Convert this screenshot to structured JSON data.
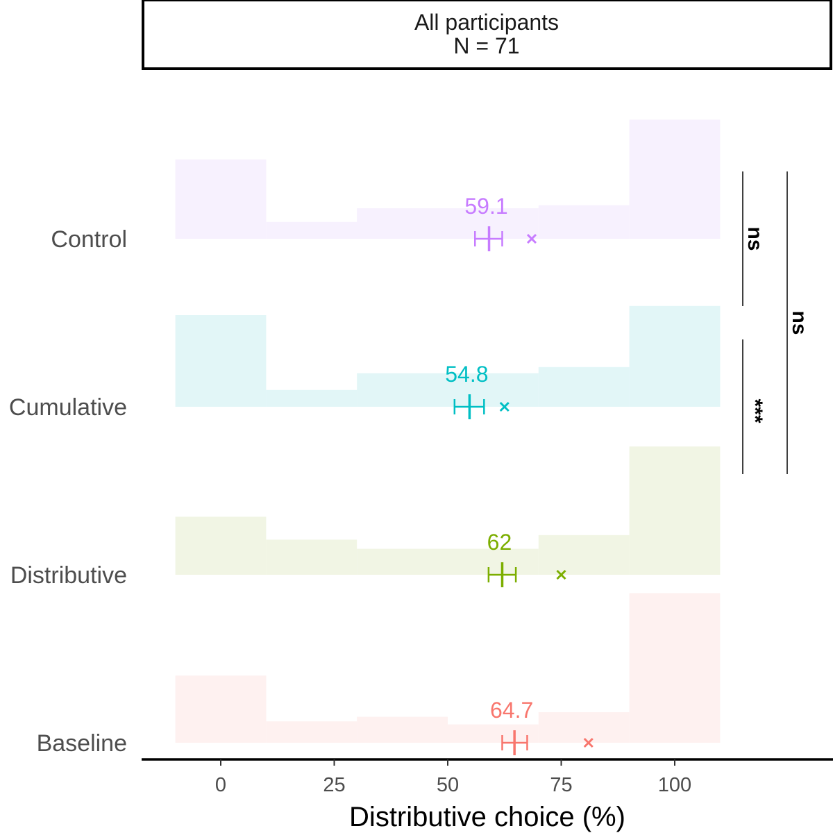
{
  "chart_data": {
    "type": "histogram",
    "facet_title": "All participants",
    "facet_subtitle": "N = 71",
    "xlabel": "Distributive choice (%)",
    "xlim": [
      -17.5,
      135
    ],
    "xticks": [
      0,
      25,
      50,
      75,
      100
    ],
    "bins": [
      [
        -10,
        10
      ],
      [
        10,
        30
      ],
      [
        30,
        50
      ],
      [
        50,
        70
      ],
      [
        70,
        90
      ],
      [
        90,
        110
      ]
    ],
    "series": [
      {
        "name": "Control",
        "color": "#C77CFF",
        "fill": "#F7F1FE",
        "density": [
          0.26,
          0.055,
          0.1,
          0.1,
          0.11,
          0.39
        ],
        "mean": 59.1,
        "mean_label": "59.1",
        "ci": [
          56,
          62
        ],
        "median": 68.5
      },
      {
        "name": "Cumulative",
        "color": "#00BFC4",
        "fill": "#E2F6F7",
        "density": [
          0.3,
          0.055,
          0.11,
          0.11,
          0.13,
          0.33
        ],
        "mean": 54.8,
        "mean_label": "54.8",
        "ci": [
          51.5,
          58
        ],
        "median": 62.5
      },
      {
        "name": "Distributive",
        "color": "#7CAE00",
        "fill": "#F1F5E4",
        "density": [
          0.19,
          0.115,
          0.085,
          0.085,
          0.13,
          0.42
        ],
        "mean": 62.0,
        "mean_label": "62",
        "ci": [
          59,
          65
        ],
        "median": 75.0
      },
      {
        "name": "Baseline",
        "color": "#F8766D",
        "fill": "#FEF1F0",
        "density": [
          0.22,
          0.07,
          0.085,
          0.06,
          0.1,
          0.49
        ],
        "mean": 64.7,
        "mean_label": "64.7",
        "ci": [
          62,
          67.5
        ],
        "median": 81.0
      }
    ],
    "comparisons": [
      {
        "from": "Control",
        "to": "Cumulative",
        "label": "ns"
      },
      {
        "from": "Cumulative",
        "to": "Distributive",
        "label": "***"
      },
      {
        "from": "Control",
        "to": "Distributive",
        "label": "ns"
      }
    ]
  }
}
